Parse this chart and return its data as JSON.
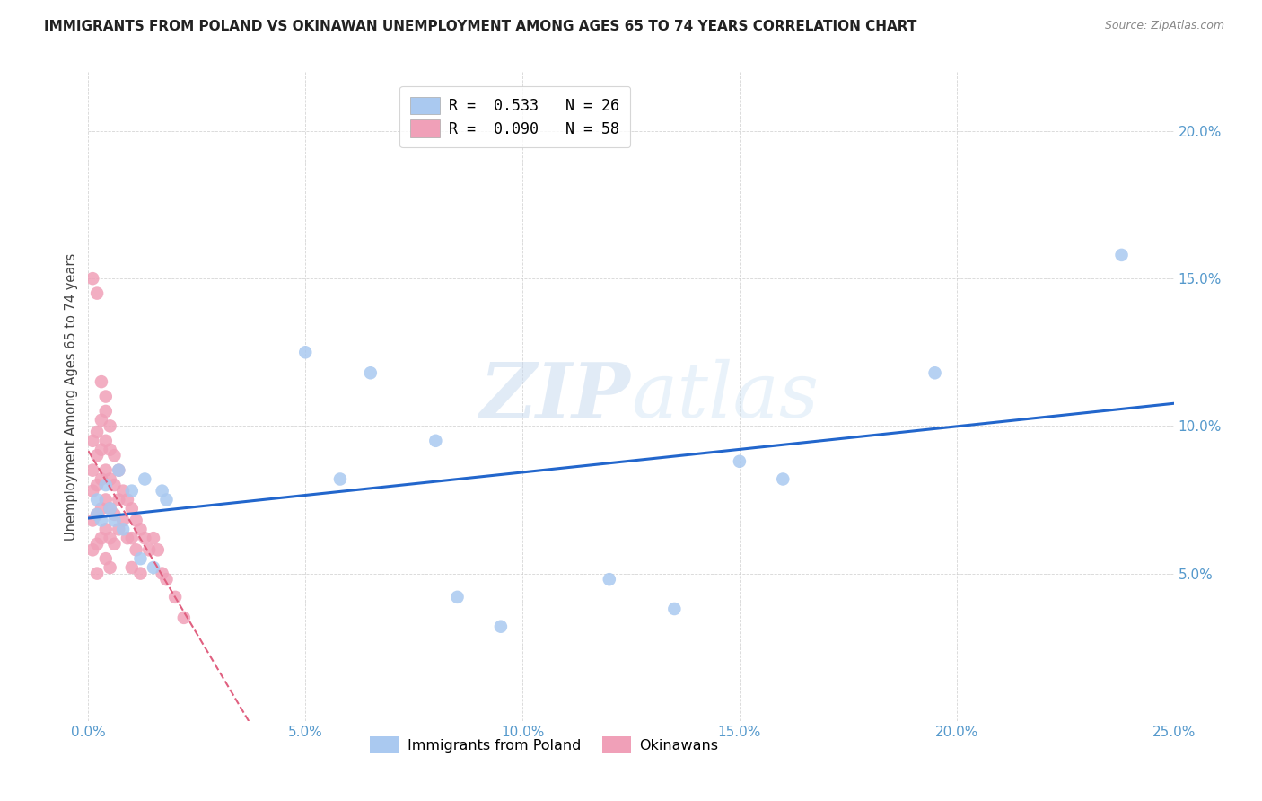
{
  "title": "IMMIGRANTS FROM POLAND VS OKINAWAN UNEMPLOYMENT AMONG AGES 65 TO 74 YEARS CORRELATION CHART",
  "source": "Source: ZipAtlas.com",
  "ylabel": "Unemployment Among Ages 65 to 74 years",
  "xlim": [
    0,
    0.25
  ],
  "ylim": [
    0,
    0.22
  ],
  "xticks": [
    0.0,
    0.05,
    0.1,
    0.15,
    0.2,
    0.25
  ],
  "yticks": [
    0.0,
    0.05,
    0.1,
    0.15,
    0.2
  ],
  "xtick_labels": [
    "0.0%",
    "5.0%",
    "10.0%",
    "15.0%",
    "20.0%",
    "25.0%"
  ],
  "ytick_labels": [
    "",
    "5.0%",
    "10.0%",
    "15.0%",
    "20.0%"
  ],
  "legend_blue_label": "Immigrants from Poland",
  "legend_pink_label": "Okinawans",
  "watermark_zip": "ZIP",
  "watermark_atlas": "atlas",
  "blue_color": "#aac9f0",
  "blue_line_color": "#2266cc",
  "pink_color": "#f0a0b8",
  "pink_line_color": "#e06080",
  "poland_x": [
    0.002,
    0.002,
    0.003,
    0.004,
    0.005,
    0.006,
    0.007,
    0.008,
    0.01,
    0.012,
    0.013,
    0.015,
    0.017,
    0.018,
    0.05,
    0.058,
    0.065,
    0.08,
    0.085,
    0.095,
    0.12,
    0.135,
    0.15,
    0.16,
    0.195,
    0.238
  ],
  "poland_y": [
    0.07,
    0.075,
    0.068,
    0.08,
    0.072,
    0.068,
    0.085,
    0.065,
    0.078,
    0.055,
    0.082,
    0.052,
    0.078,
    0.075,
    0.125,
    0.082,
    0.118,
    0.095,
    0.042,
    0.032,
    0.048,
    0.038,
    0.088,
    0.082,
    0.118,
    0.158
  ],
  "okinawa_x": [
    0.001,
    0.001,
    0.001,
    0.001,
    0.001,
    0.002,
    0.002,
    0.002,
    0.002,
    0.002,
    0.002,
    0.003,
    0.003,
    0.003,
    0.003,
    0.003,
    0.004,
    0.004,
    0.004,
    0.004,
    0.004,
    0.004,
    0.005,
    0.005,
    0.005,
    0.005,
    0.005,
    0.006,
    0.006,
    0.006,
    0.006,
    0.007,
    0.007,
    0.007,
    0.008,
    0.008,
    0.009,
    0.009,
    0.01,
    0.01,
    0.01,
    0.011,
    0.011,
    0.012,
    0.012,
    0.013,
    0.014,
    0.015,
    0.016,
    0.017,
    0.018,
    0.02,
    0.022,
    0.001,
    0.002,
    0.003,
    0.004,
    0.005
  ],
  "okinawa_y": [
    0.095,
    0.085,
    0.078,
    0.068,
    0.058,
    0.098,
    0.09,
    0.08,
    0.07,
    0.06,
    0.05,
    0.102,
    0.092,
    0.082,
    0.072,
    0.062,
    0.105,
    0.095,
    0.085,
    0.075,
    0.065,
    0.055,
    0.092,
    0.082,
    0.072,
    0.062,
    0.052,
    0.09,
    0.08,
    0.07,
    0.06,
    0.085,
    0.075,
    0.065,
    0.078,
    0.068,
    0.075,
    0.062,
    0.072,
    0.062,
    0.052,
    0.068,
    0.058,
    0.065,
    0.05,
    0.062,
    0.058,
    0.062,
    0.058,
    0.05,
    0.048,
    0.042,
    0.035,
    0.15,
    0.145,
    0.115,
    0.11,
    0.1
  ]
}
